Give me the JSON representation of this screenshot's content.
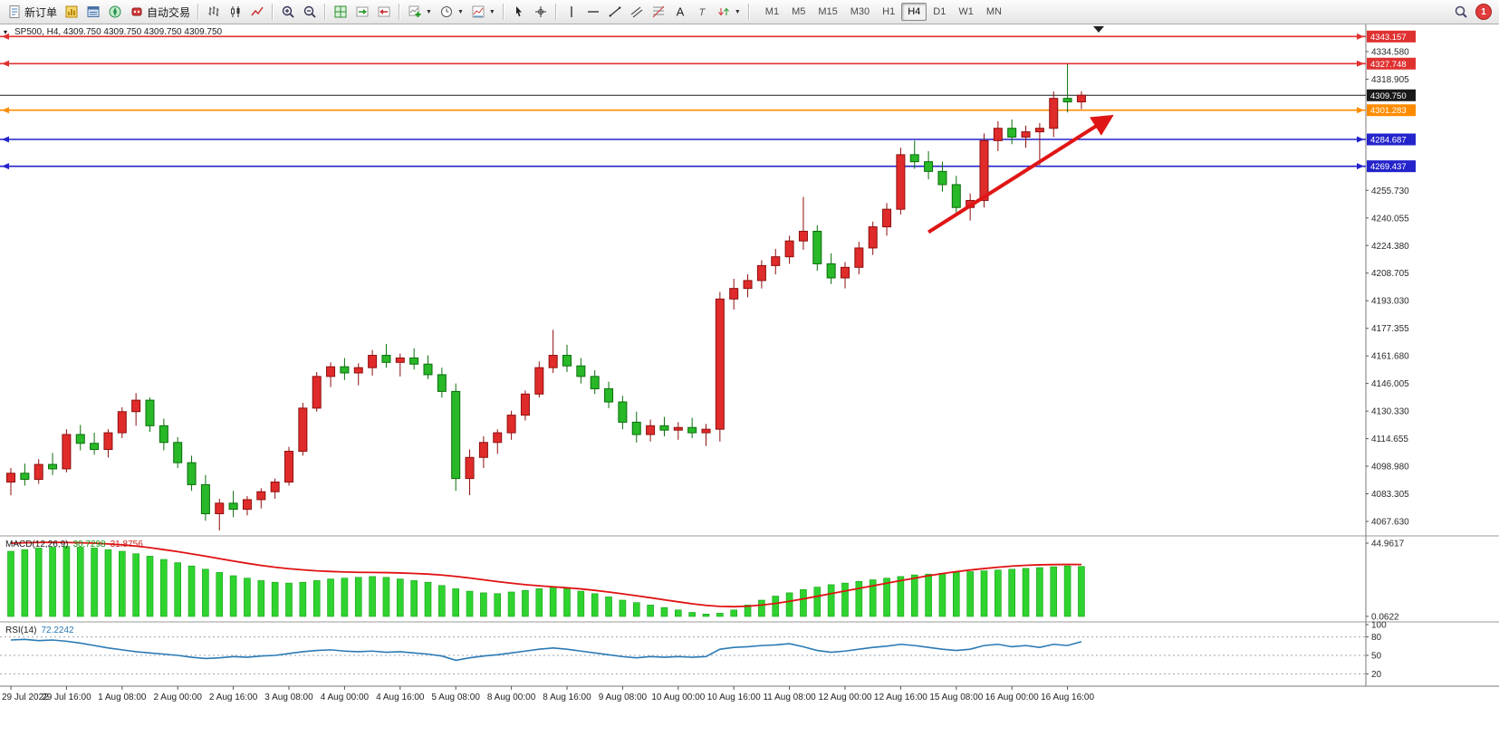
{
  "toolbar": {
    "groups": [
      {
        "items": [
          {
            "name": "new-order",
            "label": "新订单",
            "icon": "new-order-icon"
          },
          {
            "name": "charts",
            "icon": "charts-icon"
          },
          {
            "name": "market-watch",
            "icon": "market-watch-icon"
          },
          {
            "name": "navigator",
            "icon": "navigator-icon"
          },
          {
            "name": "auto-trading",
            "label": "自动交易",
            "icon": "auto-trading-icon"
          }
        ]
      },
      {
        "items": [
          {
            "name": "bar-chart-mode",
            "icon": "bar-chart-icon"
          },
          {
            "name": "candlestick-mode",
            "icon": "candlestick-icon"
          },
          {
            "name": "line-chart-mode",
            "icon": "line-chart-icon"
          }
        ]
      },
      {
        "items": [
          {
            "name": "zoom-in",
            "icon": "zoom-in-icon"
          },
          {
            "name": "zoom-out",
            "icon": "zoom-out-icon"
          }
        ]
      },
      {
        "items": [
          {
            "name": "tile-windows",
            "icon": "tile-windows-icon"
          },
          {
            "name": "auto-scroll",
            "icon": "auto-scroll-icon"
          },
          {
            "name": "chart-shift",
            "icon": "chart-shift-icon"
          }
        ]
      },
      {
        "items": [
          {
            "name": "new-chart",
            "icon": "new-chart-icon",
            "dropdown": true
          },
          {
            "name": "periods",
            "icon": "periods-icon",
            "dropdown": true
          },
          {
            "name": "templates",
            "icon": "templates-icon",
            "dropdown": true
          }
        ]
      },
      {
        "items": [
          {
            "name": "cursor",
            "icon": "cursor-icon"
          },
          {
            "name": "crosshair",
            "icon": "crosshair-icon"
          }
        ]
      },
      {
        "items": [
          {
            "name": "vertical-line",
            "icon": "vline-icon"
          },
          {
            "name": "horizontal-line",
            "icon": "hline-icon"
          },
          {
            "name": "trendline",
            "icon": "trendline-icon"
          },
          {
            "name": "equidistant-channel",
            "icon": "channel-icon"
          },
          {
            "name": "fibonacci",
            "icon": "fibonacci-icon"
          },
          {
            "name": "text",
            "icon": "text-icon"
          },
          {
            "name": "text-label",
            "icon": "label-icon"
          },
          {
            "name": "arrows",
            "icon": "arrows-icon",
            "dropdown": true
          }
        ]
      }
    ],
    "timeframes": [
      {
        "label": "M1"
      },
      {
        "label": "M5"
      },
      {
        "label": "M15"
      },
      {
        "label": "M30"
      },
      {
        "label": "H1"
      },
      {
        "label": "H4",
        "active": true
      },
      {
        "label": "D1"
      },
      {
        "label": "W1"
      },
      {
        "label": "MN"
      }
    ],
    "notification_count": "1"
  },
  "chart_data": {
    "type": "candlestick",
    "symbol": "SP500",
    "timeframe": "H4",
    "title": "SP500, H4, 4309.750 4309.750 4309.750 4309.750",
    "up_color": "#e02b2b",
    "down_color": "#28b828",
    "price_axis": {
      "labels": [
        "4334.580",
        "4318.905",
        "4255.730",
        "4240.055",
        "4224.380",
        "4208.705",
        "4193.030",
        "4177.355",
        "4161.680",
        "4146.005",
        "4130.330",
        "4114.655",
        "4098.980",
        "4083.305",
        "4067.630"
      ]
    },
    "time_labels": [
      "29 Jul 2022",
      "29 Jul 16:00",
      "1 Aug 08:00",
      "2 Aug 00:00",
      "2 Aug 16:00",
      "3 Aug 08:00",
      "4 Aug 00:00",
      "4 Aug 16:00",
      "5 Aug 08:00",
      "8 Aug 00:00",
      "8 Aug 16:00",
      "9 Aug 08:00",
      "10 Aug 00:00",
      "10 Aug 16:00",
      "11 Aug 08:00",
      "12 Aug 00:00",
      "12 Aug 16:00",
      "15 Aug 08:00",
      "16 Aug 00:00",
      "16 Aug 16:00"
    ],
    "lines": [
      {
        "price": "4343.157",
        "color": "#e03131",
        "type": "horizontal"
      },
      {
        "price": "4327.748",
        "color": "#e03131",
        "type": "horizontal"
      },
      {
        "price": "4309.750",
        "color": "#1a1a1a",
        "type": "last-price"
      },
      {
        "price": "4301.283",
        "color": "#ff8c00",
        "type": "horizontal"
      },
      {
        "price": "4284.687",
        "color": "#2424cc",
        "type": "horizontal"
      },
      {
        "price": "4269.437",
        "color": "#2424cc",
        "type": "horizontal"
      }
    ],
    "arrow": {
      "from_bar": 66,
      "from_price": 4232,
      "to_bar": 79,
      "to_price": 4297,
      "color": "#e01515"
    },
    "candles": [
      [
        4090.0,
        4098.0,
        4082.5,
        4095.0
      ],
      [
        4095.0,
        4100.5,
        4088.0,
        4091.5
      ],
      [
        4091.5,
        4103.0,
        4089.0,
        4100.0
      ],
      [
        4100.0,
        4106.5,
        4094.0,
        4097.5
      ],
      [
        4097.5,
        4120.0,
        4095.5,
        4117.0
      ],
      [
        4117.0,
        4122.5,
        4108.0,
        4112.0
      ],
      [
        4112.0,
        4118.0,
        4105.5,
        4108.5
      ],
      [
        4108.5,
        4120.0,
        4104.0,
        4118.0
      ],
      [
        4118.0,
        4132.5,
        4115.0,
        4130.0
      ],
      [
        4130.0,
        4140.5,
        4122.0,
        4136.5
      ],
      [
        4136.5,
        4138.0,
        4118.5,
        4122.0
      ],
      [
        4122.0,
        4126.0,
        4108.0,
        4112.5
      ],
      [
        4112.5,
        4115.5,
        4098.0,
        4101.0
      ],
      [
        4101.0,
        4105.0,
        4085.0,
        4088.5
      ],
      [
        4088.5,
        4094.0,
        4068.0,
        4072.0
      ],
      [
        4072.0,
        4080.5,
        4062.5,
        4078.0
      ],
      [
        4078.0,
        4085.0,
        4070.0,
        4074.5
      ],
      [
        4074.5,
        4082.0,
        4071.0,
        4080.0
      ],
      [
        4080.0,
        4086.5,
        4075.0,
        4084.5
      ],
      [
        4084.5,
        4092.0,
        4080.5,
        4090.0
      ],
      [
        4090.0,
        4110.0,
        4088.0,
        4107.5
      ],
      [
        4107.5,
        4135.0,
        4105.0,
        4132.0
      ],
      [
        4132.0,
        4152.5,
        4130.0,
        4150.0
      ],
      [
        4150.0,
        4158.0,
        4144.0,
        4155.5
      ],
      [
        4155.5,
        4160.5,
        4148.0,
        4152.0
      ],
      [
        4152.0,
        4157.5,
        4145.0,
        4155.0
      ],
      [
        4155.0,
        4165.0,
        4150.5,
        4162.0
      ],
      [
        4162.0,
        4168.5,
        4155.0,
        4158.0
      ],
      [
        4158.0,
        4163.0,
        4150.0,
        4160.5
      ],
      [
        4160.5,
        4166.0,
        4154.0,
        4157.0
      ],
      [
        4157.0,
        4162.0,
        4148.5,
        4151.0
      ],
      [
        4151.0,
        4155.0,
        4138.0,
        4141.5
      ],
      [
        4141.5,
        4146.0,
        4085.0,
        4092.0
      ],
      [
        4092.0,
        4108.5,
        4082.5,
        4104.0
      ],
      [
        4104.0,
        4116.0,
        4098.0,
        4112.5
      ],
      [
        4112.5,
        4120.0,
        4106.0,
        4118.0
      ],
      [
        4118.0,
        4130.5,
        4114.0,
        4128.0
      ],
      [
        4128.0,
        4142.0,
        4125.0,
        4140.0
      ],
      [
        4140.0,
        4158.5,
        4138.0,
        4155.0
      ],
      [
        4155.0,
        4176.5,
        4152.0,
        4162.0
      ],
      [
        4162.0,
        4168.0,
        4152.5,
        4156.0
      ],
      [
        4156.0,
        4160.5,
        4146.0,
        4150.0
      ],
      [
        4150.0,
        4153.5,
        4140.0,
        4143.0
      ],
      [
        4143.0,
        4147.0,
        4132.0,
        4135.5
      ],
      [
        4135.5,
        4139.0,
        4120.0,
        4124.0
      ],
      [
        4124.0,
        4130.0,
        4112.5,
        4117.0
      ],
      [
        4117.0,
        4125.5,
        4113.0,
        4122.0
      ],
      [
        4122.0,
        4127.0,
        4116.0,
        4119.5
      ],
      [
        4119.5,
        4124.0,
        4114.0,
        4121.0
      ],
      [
        4121.0,
        4126.5,
        4115.0,
        4118.0
      ],
      [
        4118.0,
        4123.0,
        4110.5,
        4120.0
      ],
      [
        4120.0,
        4198.0,
        4113.0,
        4194.0
      ],
      [
        4194.0,
        4205.5,
        4188.0,
        4200.0
      ],
      [
        4200.0,
        4208.0,
        4195.0,
        4204.5
      ],
      [
        4204.5,
        4216.0,
        4200.0,
        4213.0
      ],
      [
        4213.0,
        4222.5,
        4208.0,
        4218.0
      ],
      [
        4218.0,
        4230.0,
        4214.0,
        4227.0
      ],
      [
        4227.0,
        4252.0,
        4222.0,
        4232.5
      ],
      [
        4232.5,
        4236.0,
        4210.0,
        4214.0
      ],
      [
        4214.0,
        4220.0,
        4202.5,
        4206.0
      ],
      [
        4206.0,
        4215.0,
        4200.0,
        4212.0
      ],
      [
        4212.0,
        4226.5,
        4208.0,
        4223.0
      ],
      [
        4223.0,
        4238.0,
        4219.0,
        4235.0
      ],
      [
        4235.0,
        4248.5,
        4230.0,
        4245.0
      ],
      [
        4245.0,
        4280.0,
        4242.0,
        4276.0
      ],
      [
        4276.0,
        4284.0,
        4268.0,
        4272.0
      ],
      [
        4272.0,
        4278.0,
        4262.0,
        4266.5
      ],
      [
        4266.5,
        4272.0,
        4255.0,
        4259.0
      ],
      [
        4259.0,
        4264.0,
        4242.0,
        4246.0
      ],
      [
        4246.0,
        4254.0,
        4238.5,
        4250.0
      ],
      [
        4250.0,
        4288.0,
        4246.0,
        4284.0
      ],
      [
        4284.0,
        4295.0,
        4278.0,
        4291.0
      ],
      [
        4291.0,
        4296.0,
        4282.0,
        4286.0
      ],
      [
        4286.0,
        4292.5,
        4280.0,
        4289.0
      ],
      [
        4289.0,
        4294.0,
        4270.0,
        4291.0
      ],
      [
        4291.0,
        4312.0,
        4286.0,
        4308.0
      ],
      [
        4308.0,
        4327.5,
        4300.0,
        4306.0
      ],
      [
        4306.0,
        4312.0,
        4302.0,
        4309.75
      ]
    ],
    "macd": {
      "label": "MACD(12,26,9)",
      "hist_value": "30.7298",
      "signal_value": "31.8756",
      "axis": [
        "44.9617",
        "0.0622"
      ],
      "histogram": [
        40,
        41,
        42,
        42.5,
        43,
        42.5,
        42,
        41,
        40,
        38.5,
        37,
        35,
        33,
        31,
        29,
        27,
        25,
        23.5,
        22,
        21,
        20.5,
        21,
        22,
        23,
        23.5,
        24,
        24.5,
        24,
        23,
        22,
        21,
        19,
        17,
        15.5,
        14.5,
        14,
        15,
        16,
        17,
        18,
        17,
        15.5,
        14,
        12,
        10,
        8.5,
        7,
        5.5,
        4,
        2.5,
        1.5,
        2,
        4,
        7,
        10,
        12.5,
        14.5,
        16.5,
        18,
        19.5,
        20.5,
        21.5,
        22.5,
        23.5,
        24.5,
        25.5,
        26,
        26.5,
        27,
        27.5,
        28,
        28.5,
        29,
        29.5,
        30,
        30.5,
        31,
        30.7
      ],
      "signal": [
        45,
        45.2,
        45.4,
        45.5,
        45.4,
        45.2,
        45,
        44.5,
        44,
        43.2,
        42.2,
        41,
        39.8,
        38.4,
        37,
        35.5,
        34,
        32.6,
        31.3,
        30.2,
        29.3,
        28.6,
        28,
        27.6,
        27.3,
        27.1,
        27,
        26.9,
        26.7,
        26.4,
        26,
        25.4,
        24.6,
        23.6,
        22.5,
        21.4,
        20.4,
        19.5,
        18.8,
        18.2,
        17.6,
        16.9,
        16,
        15,
        13.9,
        12.7,
        11.5,
        10.2,
        9,
        7.8,
        6.8,
        6.2,
        6,
        6.3,
        7,
        8,
        9.3,
        10.8,
        12.4,
        14,
        15.6,
        17.2,
        18.8,
        20.4,
        22,
        23.5,
        25,
        26.3,
        27.5,
        28.5,
        29.4,
        30.2,
        30.9,
        31.4,
        31.7,
        31.85,
        31.9,
        31.88
      ]
    },
    "rsi": {
      "label": "RSI(14)",
      "value": "72.2242",
      "axis": [
        "100",
        "80",
        "50",
        "20"
      ],
      "levels": [
        80,
        50,
        20
      ],
      "values": [
        75,
        76,
        74,
        75,
        73,
        70,
        66,
        62,
        59,
        56,
        54,
        52,
        50,
        47,
        45,
        46,
        48,
        47,
        49,
        50,
        53,
        56,
        58,
        59,
        57,
        56,
        57,
        55,
        56,
        54,
        52,
        49,
        42,
        46,
        49,
        51,
        54,
        57,
        60,
        62,
        60,
        57,
        54,
        51,
        48,
        46,
        48,
        47,
        48,
        47,
        48,
        60,
        63,
        64,
        66,
        67,
        69,
        64,
        58,
        55,
        57,
        60,
        63,
        65,
        68,
        66,
        63,
        60,
        58,
        60,
        66,
        68,
        64,
        66,
        63,
        68,
        66,
        72.2
      ]
    }
  }
}
